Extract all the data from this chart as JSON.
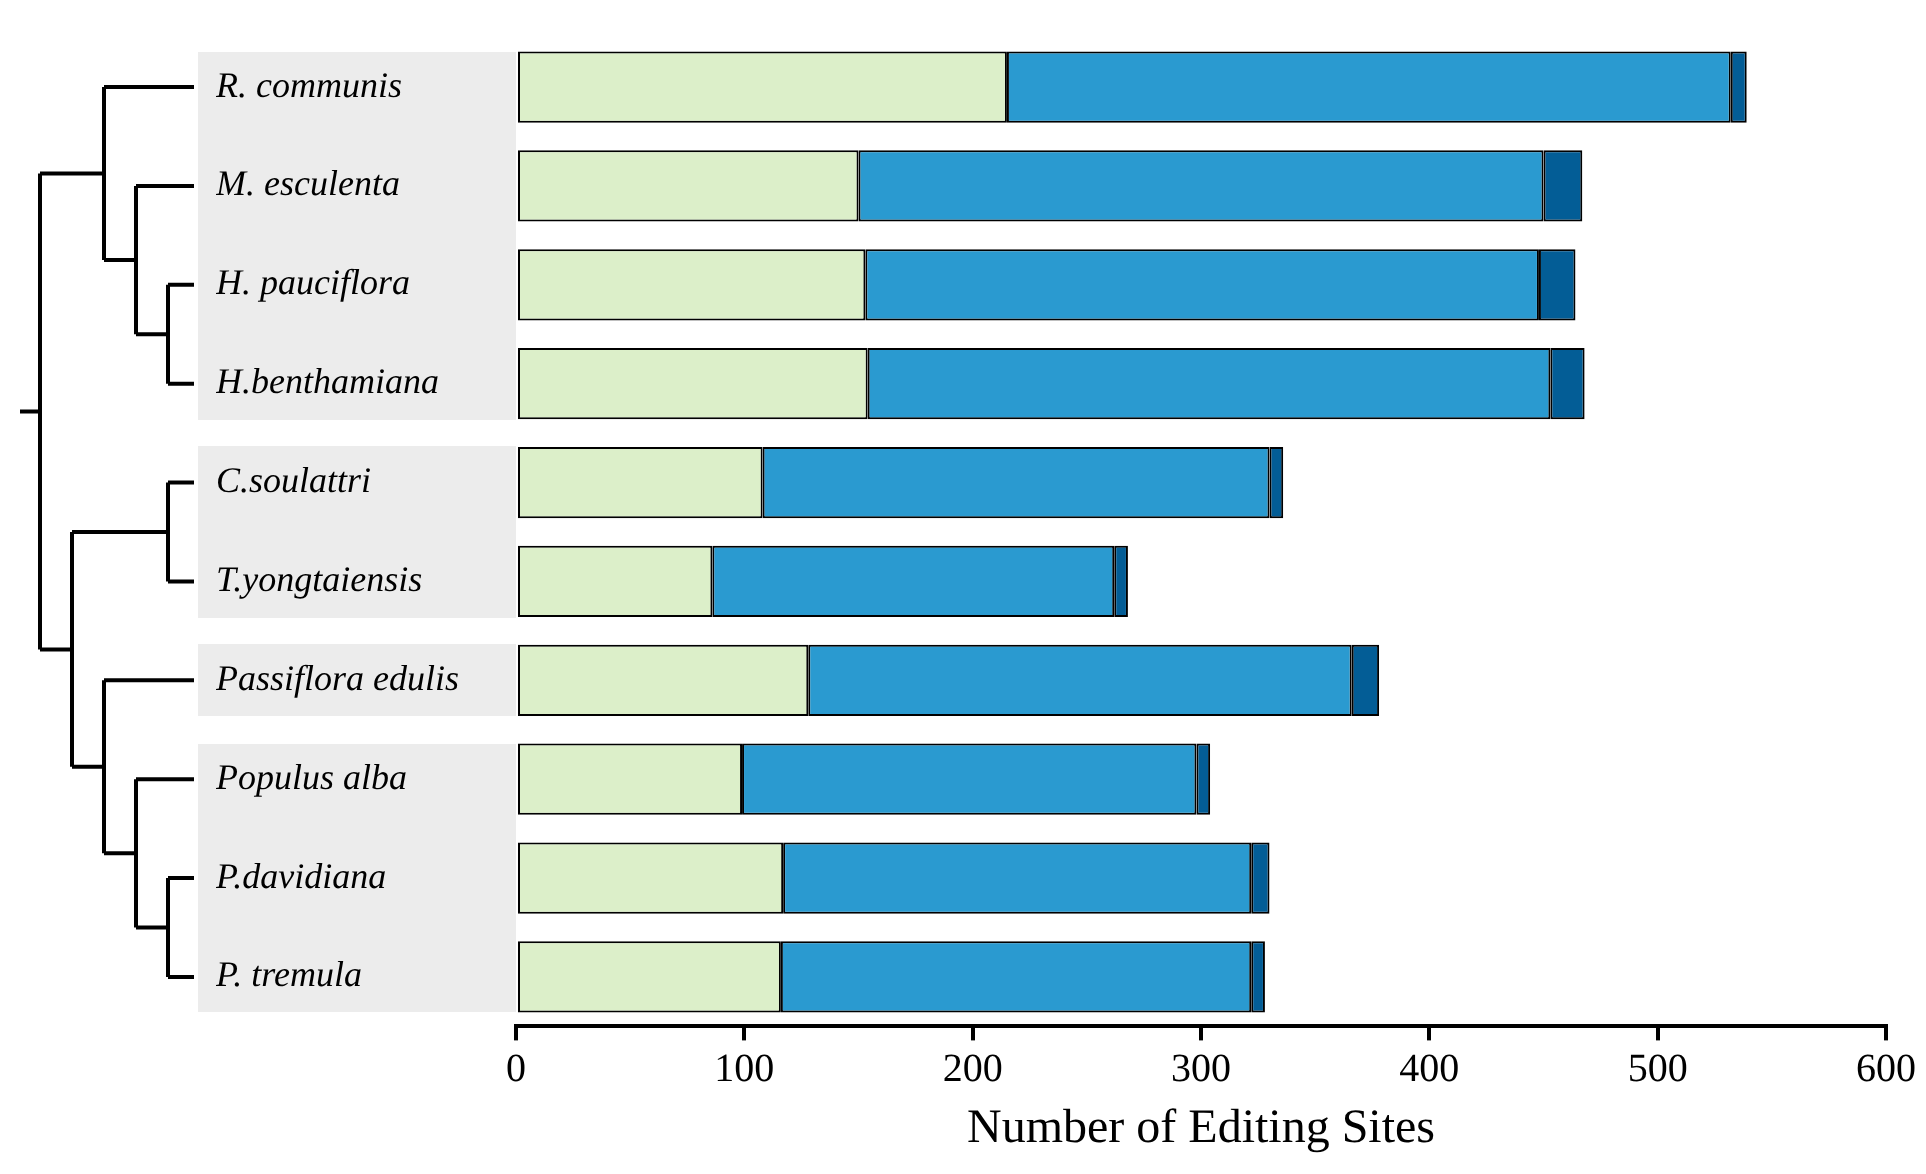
{
  "chart_data": {
    "type": "bar",
    "orientation": "horizontal",
    "stacked": true,
    "xlabel": "Number of Editing Sites",
    "categories": [
      "R. communis",
      "M. esculenta",
      "H. pauciflora",
      "H.benthamiana",
      "C.soulattri",
      "T.yongtaiensis",
      "Passiflora edulis",
      "Populus alba",
      "P.davidiana",
      "P. tremula"
    ],
    "series": [
      {
        "color": "#dcefc9",
        "values": [
          215,
          150,
          153,
          154,
          108,
          86,
          128,
          99,
          117,
          116
        ]
      },
      {
        "color": "#2a9ad0",
        "values": [
          317,
          300,
          295,
          299,
          222,
          176,
          238,
          199,
          205,
          206
        ]
      },
      {
        "color": "#035d96",
        "values": [
          7,
          17,
          16,
          15,
          6,
          6,
          12,
          6,
          8,
          6
        ]
      }
    ],
    "xlim": [
      0,
      600
    ],
    "xticks": [
      0,
      100,
      200,
      300,
      400,
      500,
      600
    ],
    "grid": false,
    "legend": false
  }
}
